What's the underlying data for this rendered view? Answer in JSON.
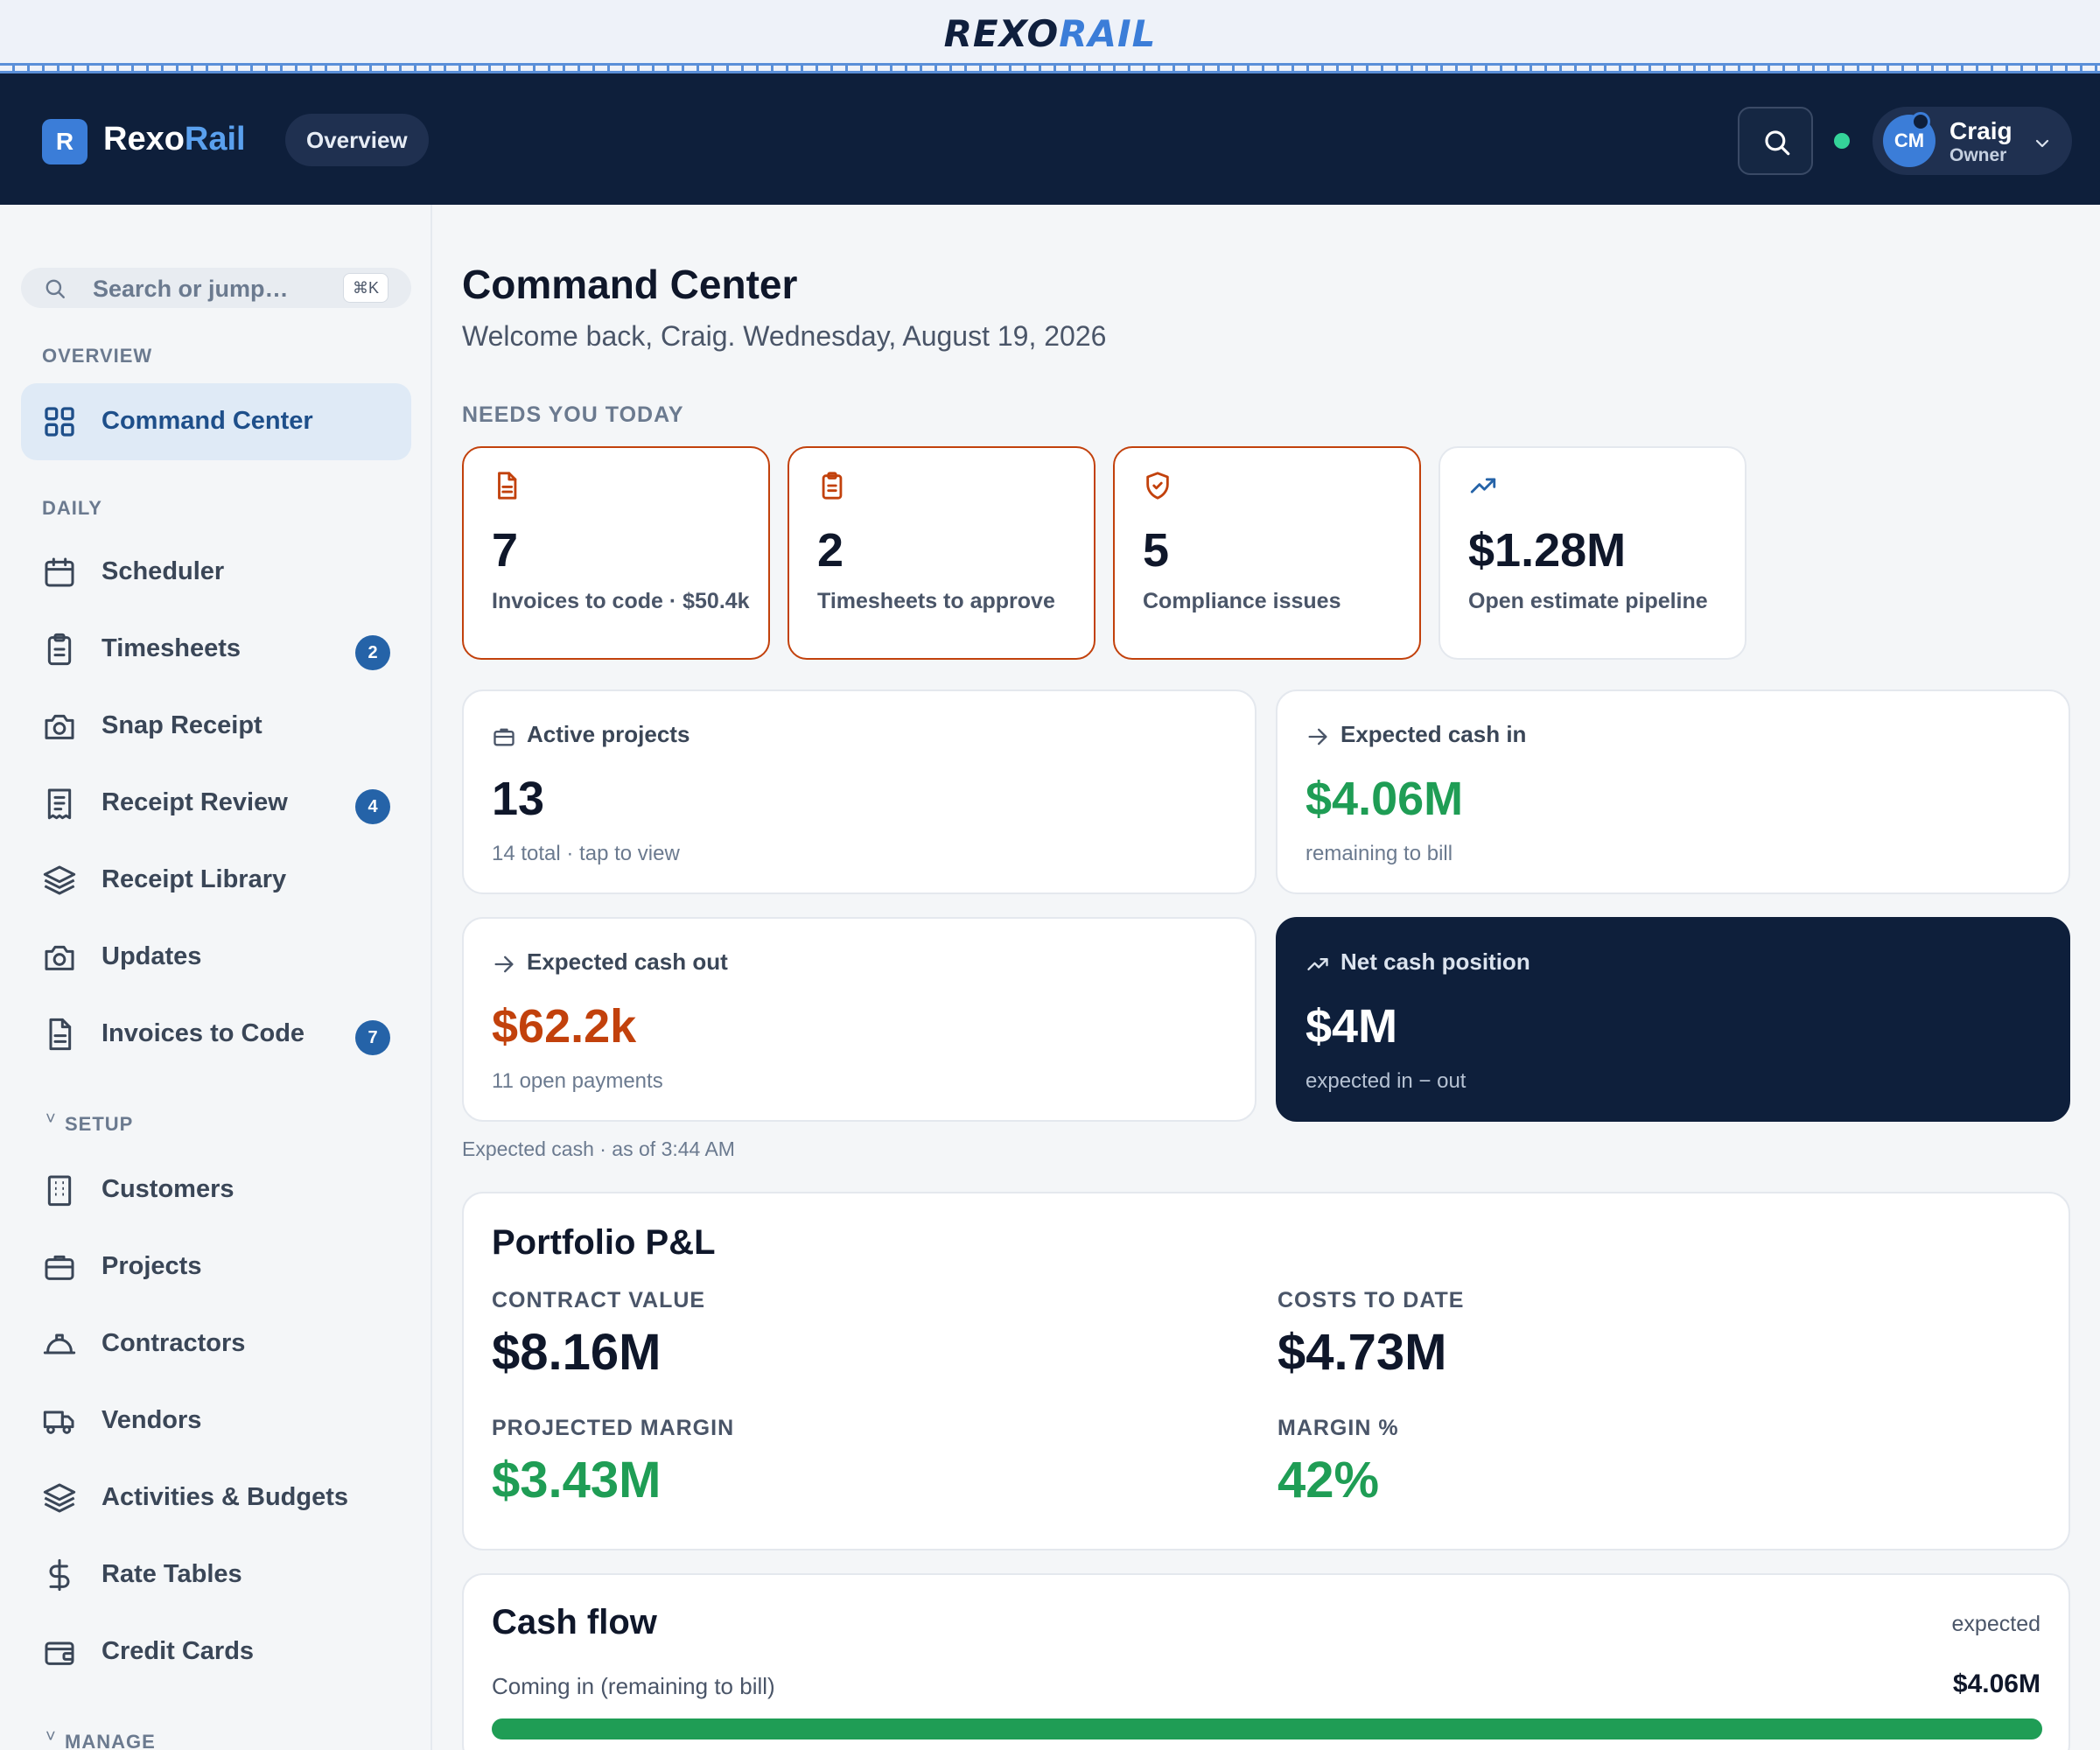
{
  "brand": {
    "word_a": "REXO",
    "word_b": "RAIL"
  },
  "header": {
    "app_badge": "R",
    "app_name_a": "Rexo",
    "app_name_b": "Rail",
    "overview_chip": "Overview",
    "user": {
      "initials": "CM",
      "name": "Craig",
      "role": "Owner"
    },
    "status_color": "#34d399"
  },
  "sidebar": {
    "search_placeholder": "Search or jump…",
    "search_shortcut": "⌘K",
    "sections": {
      "overview": "OVERVIEW",
      "daily": "DAILY",
      "setup": "SETUP",
      "manage": "MANAGE"
    },
    "items": [
      {
        "label": "Command Center",
        "icon": "grid-icon"
      },
      {
        "label": "Scheduler",
        "icon": "calendar-icon"
      },
      {
        "label": "Timesheets",
        "icon": "clipboard-icon",
        "count": "2"
      },
      {
        "label": "Snap Receipt",
        "icon": "camera-icon"
      },
      {
        "label": "Receipt Review",
        "icon": "receipt-icon",
        "count": "4"
      },
      {
        "label": "Receipt Library",
        "icon": "layers-icon"
      },
      {
        "label": "Updates",
        "icon": "camera-icon"
      },
      {
        "label": "Invoices to Code",
        "icon": "document-icon",
        "count": "7"
      },
      {
        "label": "Customers",
        "icon": "building-icon"
      },
      {
        "label": "Projects",
        "icon": "briefcase-icon"
      },
      {
        "label": "Contractors",
        "icon": "hardhat-icon"
      },
      {
        "label": "Vendors",
        "icon": "truck-icon"
      },
      {
        "label": "Activities & Budgets",
        "icon": "layers-icon"
      },
      {
        "label": "Rate Tables",
        "icon": "dollar-icon"
      },
      {
        "label": "Credit Cards",
        "icon": "wallet-icon"
      }
    ]
  },
  "main": {
    "title": "Command Center",
    "subtitle": "Welcome back, Craig. Wednesday, August 19, 2026",
    "needs_label": "NEEDS YOU TODAY",
    "kpis": [
      {
        "value": "7",
        "label": "Invoices to code · $50.4k",
        "icon": "document-icon"
      },
      {
        "value": "2",
        "label": "Timesheets to approve",
        "icon": "clipboard-icon"
      },
      {
        "value": "5",
        "label": "Compliance issues",
        "icon": "shield-check-icon"
      },
      {
        "value": "$1.28M",
        "label": "Open estimate pipeline",
        "icon": "trend-up-icon"
      }
    ],
    "cards": {
      "active_projects": {
        "title": "Active projects",
        "value": "13",
        "note": "14 total · tap to view"
      },
      "cash_in": {
        "title": "Expected cash in",
        "value": "$4.06M",
        "note": "remaining to bill"
      },
      "cash_out": {
        "title": "Expected cash out",
        "value": "$62.2k",
        "note": "11 open payments"
      },
      "net_cash": {
        "title": "Net cash position",
        "value": "$4M",
        "note": "expected in − out"
      }
    },
    "as_of": "Expected cash · as of 3:44 AM",
    "pl": {
      "title": "Portfolio P&L",
      "contract_value_label": "CONTRACT VALUE",
      "contract_value": "$8.16M",
      "costs_label": "COSTS TO DATE",
      "costs": "$4.73M",
      "margin_label": "PROJECTED MARGIN",
      "margin": "$3.43M",
      "margin_pct_label": "MARGIN %",
      "margin_pct": "42%"
    },
    "cash_flow": {
      "title": "Cash flow",
      "tag": "expected",
      "row_label": "Coming in (remaining to bill)",
      "row_value": "$4.06M",
      "fill_fraction": 1.0
    }
  },
  "colors": {
    "navy": "#0e1f3b",
    "accent": "#3b7dd8",
    "alert": "#c2410c",
    "positive": "#1f9d55"
  }
}
